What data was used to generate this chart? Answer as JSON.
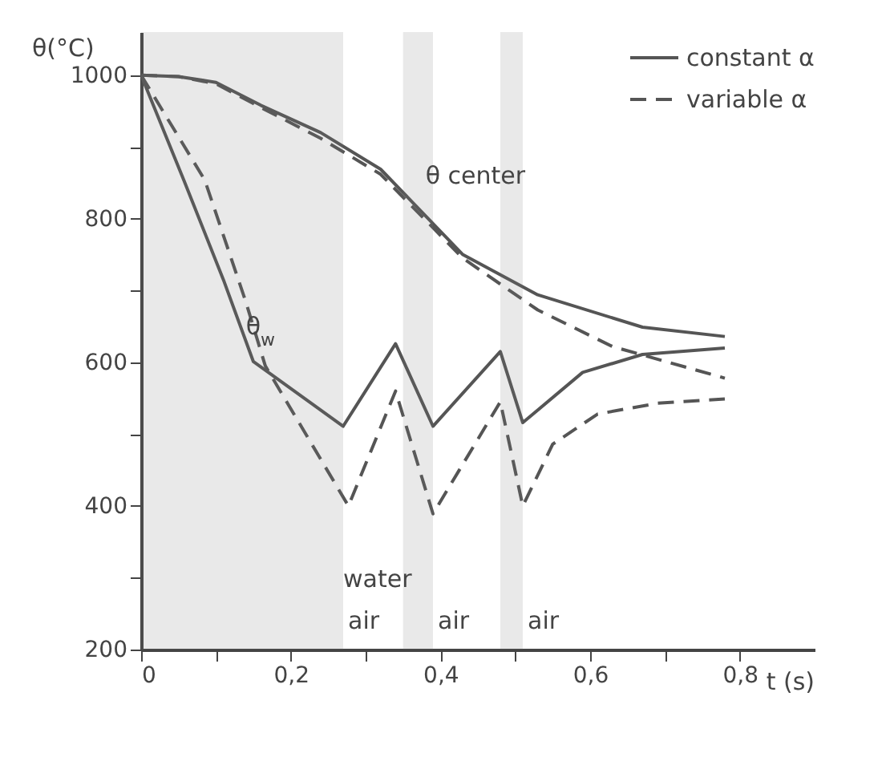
{
  "chart_data": {
    "type": "line",
    "xlabel": "t (s)",
    "ylabel": "θ(°C)",
    "xlim": [
      0,
      0.9
    ],
    "ylim": [
      200,
      1060
    ],
    "xticks": [
      0,
      {
        "value": 0.1,
        "label": null
      },
      {
        "value": 0.2,
        "label": "0,2"
      },
      {
        "value": 0.3,
        "label": null
      },
      {
        "value": 0.4,
        "label": "0,4"
      },
      {
        "value": 0.5,
        "label": null
      },
      {
        "value": 0.6,
        "label": "0,6"
      },
      {
        "value": 0.7,
        "label": null
      },
      {
        "value": 0.8,
        "label": "0,8"
      }
    ],
    "yticks": [
      200,
      {
        "value": 300,
        "label": null
      },
      400,
      {
        "value": 500,
        "label": null
      },
      600,
      {
        "value": 700,
        "label": null
      },
      800,
      {
        "value": 900,
        "label": null
      },
      1000
    ],
    "grid": false,
    "legend": "top right",
    "marker": "none",
    "series": [
      {
        "name": "constant α",
        "color": "#555555",
        "line_style": "solid",
        "x": [
          0,
          0.05,
          0.1,
          0.16,
          0.24,
          0.32,
          0.43,
          0.53,
          0.67,
          0.78
        ],
        "values": [
          1000,
          998,
          990,
          958,
          920,
          869,
          750,
          694,
          649,
          636
        ]
      },
      {
        "name": "variable α",
        "color": "#555555",
        "line_style": "dashed",
        "x": [
          0,
          0.05,
          0.1,
          0.16,
          0.24,
          0.32,
          0.43,
          0.53,
          0.63,
          0.78
        ],
        "values": [
          1000,
          998,
          988,
          955,
          912,
          862,
          745,
          673,
          622,
          578
        ]
      },
      {
        "color": "#555555",
        "line_style": "solid",
        "x": [
          0,
          0.057,
          0.11,
          0.15,
          0.27,
          0.34,
          0.39,
          0.48,
          0.51,
          0.59,
          0.67,
          0.78
        ],
        "values": [
          1000,
          854,
          715,
          601,
          511,
          626,
          511,
          615,
          516,
          586,
          611,
          620
        ]
      },
      {
        "color": "#555555",
        "line_style": "dashed",
        "x": [
          0,
          0.085,
          0.14,
          0.166,
          0.277,
          0.34,
          0.39,
          0.48,
          0.51,
          0.55,
          0.61,
          0.69,
          0.78
        ],
        "values": [
          1000,
          854,
          684,
          595,
          400,
          560,
          389,
          545,
          400,
          486,
          528,
          543,
          549
        ]
      }
    ],
    "bands": [
      {
        "axis": "x",
        "from": 0,
        "to": 0.27,
        "color": "#777777",
        "label": "water"
      },
      {
        "axis": "x",
        "from": 0.35,
        "to": 0.39,
        "color": "#777777"
      },
      {
        "axis": "x",
        "from": 0.48,
        "to": 0.51,
        "color": "#777777"
      }
    ],
    "annotations": [
      {
        "text": "θ center",
        "x": 0.38,
        "y": 860
      },
      {
        "text": "θ$_{w}$",
        "x": 0.14,
        "y": 650
      },
      "air",
      "air",
      "air"
    ]
  }
}
